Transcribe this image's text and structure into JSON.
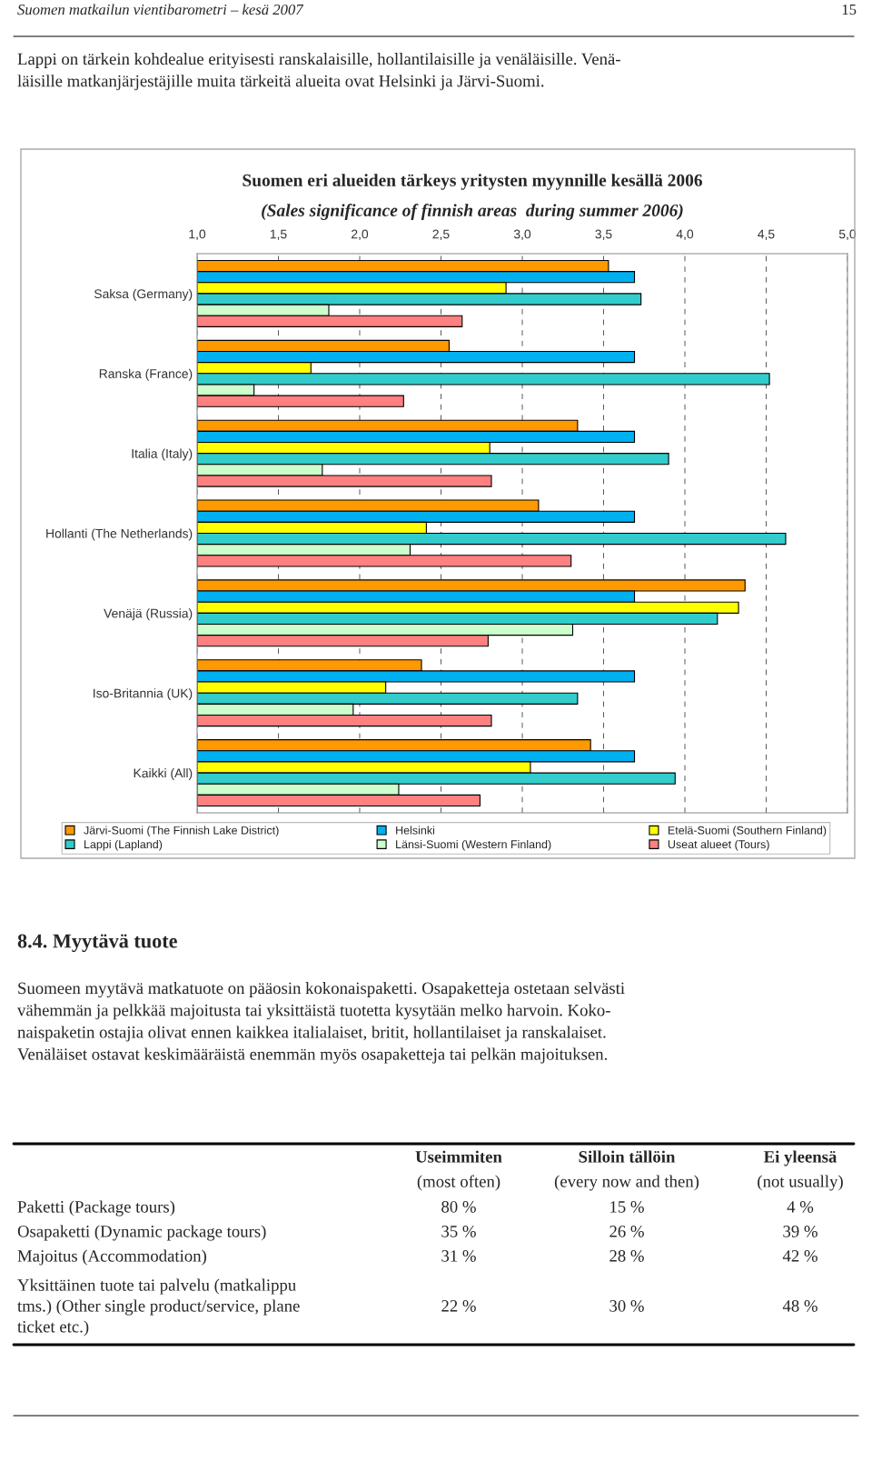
{
  "chart_data": {
    "type": "bar",
    "orientation": "horizontal",
    "title": "Suomen eri alueiden tärkeys yritysten myynnille kesällä 2006",
    "subtitle": "(Sales significance of finnish areas  during summer 2006)",
    "categories": [
      "Saksa (Germany)",
      "Ranska (France)",
      "Italia (Italy)",
      "Hollanti (The Netherlands)",
      "Venäjä (Russia)",
      "Iso-Britannia (UK)",
      "Kaikki (All)"
    ],
    "series": [
      {
        "name": "Järvi-Suomi (The Finnish Lake District)",
        "color": "#ff9900",
        "values": [
          3.53,
          2.55,
          3.34,
          3.1,
          4.37,
          2.38,
          3.42
        ]
      },
      {
        "name": "Helsinki",
        "color": "#00b0f0",
        "values": [
          3.69,
          3.69,
          3.69,
          3.69,
          3.69,
          3.69,
          3.69
        ]
      },
      {
        "name": "Etelä-Suomi (Southern Finland)",
        "color": "#ffff00",
        "values": [
          2.9,
          1.7,
          2.8,
          2.41,
          4.33,
          2.16,
          3.05
        ]
      },
      {
        "name": "Lappi (Lapland)",
        "color": "#33cccc",
        "values": [
          3.73,
          4.52,
          3.9,
          4.62,
          4.2,
          3.34,
          3.94
        ]
      },
      {
        "name": "Länsi-Suomi (Western Finland)",
        "color": "#ccffcc",
        "values": [
          1.81,
          1.35,
          1.77,
          2.31,
          3.31,
          1.96,
          2.24
        ]
      },
      {
        "name": "Useat alueet (Tours)",
        "color": "#ff8080",
        "values": [
          2.63,
          2.27,
          2.81,
          3.3,
          2.79,
          2.81,
          2.74
        ]
      }
    ],
    "xlim": [
      1.0,
      5.0
    ],
    "xticks": [
      {
        "value": 1.0,
        "label": "1,0"
      },
      {
        "value": 1.5,
        "label": "1,5"
      },
      {
        "value": 2.0,
        "label": "2,0"
      },
      {
        "value": 2.5,
        "label": "2,5"
      },
      {
        "value": 3.0,
        "label": "3,0"
      },
      {
        "value": 3.5,
        "label": "3,5"
      },
      {
        "value": 4.0,
        "label": "4,0"
      },
      {
        "value": 4.5,
        "label": "4,5"
      },
      {
        "value": 5.0,
        "label": "5,0"
      }
    ],
    "grid": "x",
    "legend": "bottom",
    "annotations": [
      "Suomen matkailun vientibarometri – kesä 2007",
      "15",
      "Lappi on tärkein kohdealue erityisesti ranskalaisille, hollantilaisille ja venäläisille. Venä-\nläisille matkanjärjestäjille muita tärkeitä alueita ovat Helsinki ja Järvi-Suomi.",
      "8.4. Myytävä tuote",
      "Suomeen myytävä matkatuote on pääosin kokonaispaketti. Osapaketteja ostetaan selvästi\nvähemmän ja pelkkää majoitusta tai yksittäistä tuotetta kysytään melko harvoin. Koko-\nnaispaketin ostajia olivat ennen kaikkea italialaiset, britit, hollantilaiset ja ranskalaiset.\nVenäläiset ostavat keskimääräistä enemmän myös osapaketteja tai pelkän majoituksen.",
      "Useimmiten",
      "(most often)",
      "Silloin tällöin",
      "(every now and then)",
      "Ei yleensä",
      "(not usually)",
      "Paketti (Package tours)",
      "80 %",
      "15 %",
      "4 %",
      "Osapaketti (Dynamic package tours)",
      "35 %",
      "26 %",
      "39 %",
      "Majoitus (Accommodation)",
      "31 %",
      "28 %",
      "42 %",
      "Yksittäinen tuote tai palvelu (matkalippu\ntms.) (Other single product/service, plane\nticket etc.)",
      "22 %",
      "30 %",
      "48 %"
    ]
  }
}
